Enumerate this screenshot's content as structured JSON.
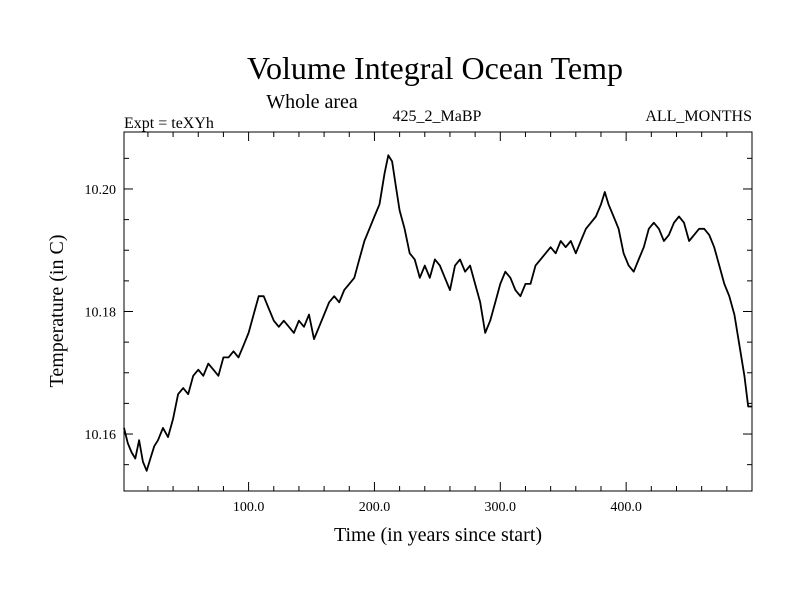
{
  "chart_data": {
    "type": "line",
    "title": "Volume Integral Ocean Temp",
    "subtitle": "Whole area",
    "annotations": {
      "left": "Expt = teXYh",
      "center": "425_2_MaBP",
      "right": "ALL_MONTHS"
    },
    "xlabel": "Time (in years since start)",
    "ylabel": "Temperature (in C)",
    "xlim": [
      1,
      500
    ],
    "ylim": [
      10.1507,
      10.2093
    ],
    "x_ticks": [
      100,
      200,
      300,
      400
    ],
    "x_tick_labels": [
      "100.0",
      "200.0",
      "300.0",
      "400.0"
    ],
    "y_ticks": [
      10.16,
      10.18,
      10.2
    ],
    "y_tick_labels": [
      "10.16",
      "10.18",
      "10.20"
    ],
    "grid": false,
    "series": [
      {
        "color": "#000000",
        "x": [
          1,
          4,
          7,
          10,
          13,
          16,
          19,
          22,
          25,
          28,
          32,
          36,
          40,
          44,
          48,
          52,
          56,
          60,
          64,
          68,
          72,
          76,
          80,
          84,
          88,
          92,
          96,
          100,
          104,
          108,
          112,
          116,
          120,
          124,
          128,
          132,
          136,
          140,
          144,
          148,
          152,
          156,
          160,
          164,
          168,
          172,
          176,
          180,
          184,
          188,
          192,
          196,
          200,
          204,
          208,
          211,
          214,
          217,
          220,
          224,
          228,
          232,
          236,
          240,
          244,
          248,
          252,
          256,
          260,
          264,
          268,
          272,
          276,
          280,
          284,
          288,
          292,
          296,
          300,
          304,
          308,
          312,
          316,
          320,
          324,
          328,
          332,
          336,
          340,
          344,
          348,
          352,
          356,
          360,
          364,
          368,
          372,
          376,
          380,
          383,
          386,
          390,
          394,
          398,
          402,
          406,
          410,
          414,
          418,
          422,
          426,
          430,
          434,
          438,
          442,
          446,
          450,
          454,
          458,
          462,
          466,
          470,
          474,
          478,
          482,
          486,
          490,
          494,
          497,
          500
        ],
        "y": [
          10.161,
          10.1585,
          10.157,
          10.156,
          10.159,
          10.1555,
          10.154,
          10.156,
          10.158,
          10.159,
          10.161,
          10.1595,
          10.1625,
          10.1665,
          10.1675,
          10.1665,
          10.1695,
          10.1705,
          10.1695,
          10.1715,
          10.1705,
          10.1695,
          10.1725,
          10.1725,
          10.1735,
          10.1725,
          10.1745,
          10.1765,
          10.1795,
          10.1825,
          10.1825,
          10.1805,
          10.1785,
          10.1775,
          10.1785,
          10.1775,
          10.1765,
          10.1785,
          10.1775,
          10.1795,
          10.1755,
          10.1775,
          10.1795,
          10.1815,
          10.1825,
          10.1815,
          10.1835,
          10.1845,
          10.1855,
          10.1885,
          10.1915,
          10.1935,
          10.1955,
          10.1975,
          10.2025,
          10.2055,
          10.2045,
          10.2005,
          10.1965,
          10.1935,
          10.1895,
          10.1885,
          10.1855,
          10.1875,
          10.1855,
          10.1885,
          10.1875,
          10.1855,
          10.1835,
          10.1875,
          10.1885,
          10.1865,
          10.1875,
          10.1845,
          10.1815,
          10.1765,
          10.1785,
          10.1815,
          10.1845,
          10.1865,
          10.1855,
          10.1835,
          10.1825,
          10.1845,
          10.1845,
          10.1875,
          10.1885,
          10.1895,
          10.1905,
          10.1895,
          10.1915,
          10.1905,
          10.1915,
          10.1895,
          10.1915,
          10.1935,
          10.1945,
          10.1955,
          10.1975,
          10.1995,
          10.1975,
          10.1955,
          10.1935,
          10.1895,
          10.1875,
          10.1865,
          10.1885,
          10.1905,
          10.1935,
          10.1945,
          10.1935,
          10.1915,
          10.1925,
          10.1945,
          10.1955,
          10.1945,
          10.1915,
          10.1925,
          10.1935,
          10.1935,
          10.1925,
          10.1905,
          10.1875,
          10.1845,
          10.1825,
          10.1795,
          10.1745,
          10.1695,
          10.1645,
          10.1645
        ]
      }
    ]
  }
}
